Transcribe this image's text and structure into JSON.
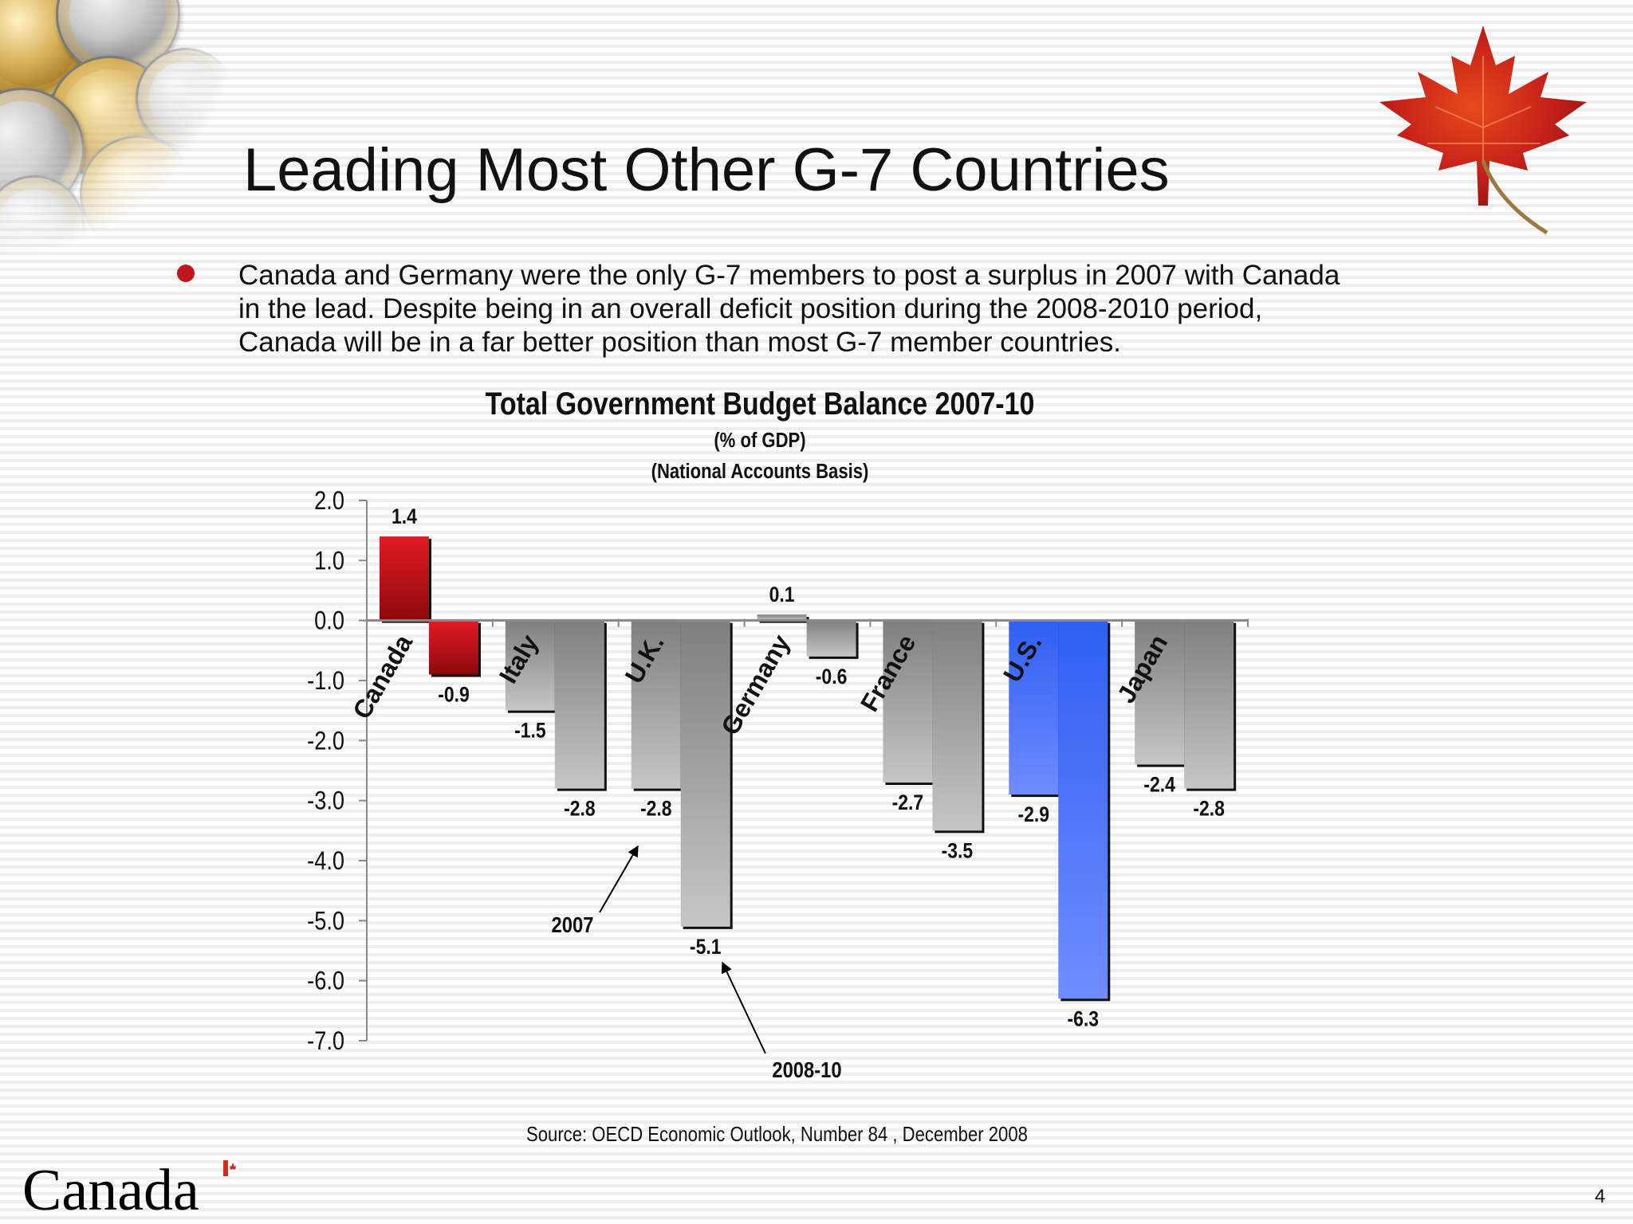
{
  "slide": {
    "title": "Leading Most Other G-7 Countries",
    "bullet": "Canada and Germany were the only G-7 members to post a surplus in 2007  with Canada in the lead. Despite being in an overall deficit position during the 2008-2010 period, Canada will be in a far better position than most G-7 member countries.",
    "source": "Source: OECD Economic Outlook, Number 84 , December 2008",
    "page_number": "4",
    "logo_text": "Canada",
    "bullet_color": "#c0151c"
  },
  "chart_data": {
    "type": "bar",
    "title": "Total Government Budget Balance 2007-10",
    "subtitle": "(% of GDP)",
    "subtitle2": "(National Accounts Basis)",
    "categories": [
      "Canada",
      "Italy",
      "U.K.",
      "Germany",
      "France",
      "U.S.",
      "Japan"
    ],
    "series": [
      {
        "name": "2007",
        "values": [
          1.4,
          -1.5,
          -2.8,
          0.1,
          -2.7,
          -2.9,
          -2.4
        ]
      },
      {
        "name": "2008-10",
        "values": [
          -0.9,
          -2.8,
          -5.1,
          -0.6,
          -3.5,
          -6.3,
          -2.8
        ]
      }
    ],
    "value_labels": [
      [
        "1.4",
        "-0.9"
      ],
      [
        "-1.5",
        "-2.8"
      ],
      [
        "-2.8",
        "-5.1"
      ],
      [
        "0.1",
        "-0.6"
      ],
      [
        "-2.7",
        "-3.5"
      ],
      [
        "-2.9",
        "-6.3"
      ],
      [
        "-2.4",
        "-2.8"
      ]
    ],
    "ylim": [
      -7.0,
      2.0
    ],
    "y_ticks": [
      "2.0",
      "1.0",
      "0.0",
      "-1.0",
      "-2.0",
      "-3.0",
      "-4.0",
      "-5.0",
      "-6.0",
      "-7.0"
    ],
    "annotations": [
      "2007",
      "2008-10"
    ],
    "colors": {
      "canada": "#c8101a",
      "us": "#3a66f2",
      "other": "#9a9a9a"
    },
    "grid": false,
    "legend": "none"
  }
}
